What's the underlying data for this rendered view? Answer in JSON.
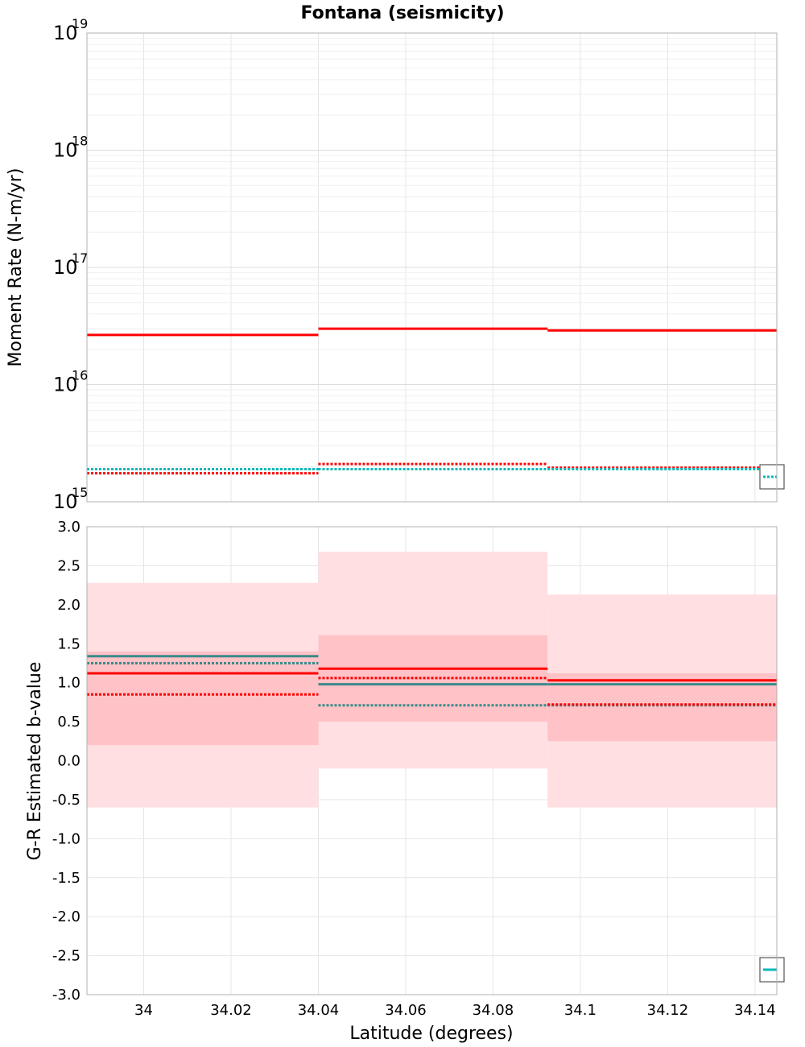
{
  "colors": {
    "red": "#ff0000",
    "teal": "#3a8a8a",
    "cyan": "#00b8b8",
    "band_outer": "#ffdfe2",
    "band_inner": "#ffc2c6",
    "grid": "#e6e6e6",
    "frame": "#b0b0b0"
  },
  "chart_data": [
    {
      "type": "line",
      "title": "Fontana (seismicity)",
      "xlabel": "",
      "ylabel": "Moment Rate (N-m/yr)",
      "yscale": "log",
      "ylim": [
        1000000000000000.0,
        1e+19
      ],
      "xlim": [
        33.987,
        34.145
      ],
      "grid": true,
      "y_tick_labels": [
        {
          "base": "10",
          "exp": "15",
          "value": 1000000000000000.0
        },
        {
          "base": "10",
          "exp": "16",
          "value": 1e+16
        },
        {
          "base": "10",
          "exp": "17",
          "value": 1e+17
        },
        {
          "base": "10",
          "exp": "18",
          "value": 1e+18
        },
        {
          "base": "10",
          "exp": "19",
          "value": 1e+19
        }
      ],
      "bins": [
        {
          "x0": 33.987,
          "x1": 34.04
        },
        {
          "x0": 34.04,
          "x1": 34.0925
        },
        {
          "x0": 34.0925,
          "x1": 34.145
        }
      ],
      "series": [
        {
          "style": "solid",
          "color": "red",
          "values": [
            2.65e+16,
            3e+16,
            2.9e+16
          ]
        },
        {
          "style": "dotted",
          "color": "red",
          "values": [
            1750000000000000.0,
            2100000000000000.0,
            1950000000000000.0
          ]
        },
        {
          "style": "dotted",
          "color": "cyan",
          "values": [
            1900000000000000.0,
            1900000000000000.0,
            1900000000000000.0
          ]
        }
      ]
    },
    {
      "type": "line",
      "title": "",
      "xlabel": "Latitude (degrees)",
      "ylabel": "G-R Estimated b-value",
      "ylim": [
        -3.0,
        3.0
      ],
      "xlim": [
        33.987,
        34.145
      ],
      "grid": true,
      "y_ticks": [
        "3.0",
        "2.5",
        "2.0",
        "1.5",
        "1.0",
        "0.5",
        "0.0",
        "-0.5",
        "-1.0",
        "-1.5",
        "-2.0",
        "-2.5",
        "-3.0"
      ],
      "x_ticks": [
        "34",
        "34.02",
        "34.04",
        "34.06",
        "34.08",
        "34.1",
        "34.12",
        "34.14"
      ],
      "bins": [
        {
          "x0": 33.987,
          "x1": 34.04
        },
        {
          "x0": 34.04,
          "x1": 34.0925
        },
        {
          "x0": 34.0925,
          "x1": 34.145
        }
      ],
      "bands": [
        {
          "level": "outer",
          "lower": [
            -0.6,
            -0.1,
            -0.6
          ],
          "upper": [
            2.28,
            2.68,
            2.13
          ]
        },
        {
          "level": "inner",
          "lower": [
            0.2,
            0.5,
            0.25
          ],
          "upper": [
            1.4,
            1.61,
            1.12
          ]
        }
      ],
      "series": [
        {
          "style": "solid",
          "color": "red",
          "values": [
            1.12,
            1.18,
            1.03
          ]
        },
        {
          "style": "solid",
          "color": "teal",
          "values": [
            1.34,
            0.98,
            0.98
          ]
        },
        {
          "style": "dotted",
          "color": "teal",
          "values": [
            1.25,
            0.71,
            0.71
          ]
        },
        {
          "style": "dotted",
          "color": "red",
          "values": [
            0.85,
            1.06,
            0.72
          ]
        }
      ]
    }
  ]
}
